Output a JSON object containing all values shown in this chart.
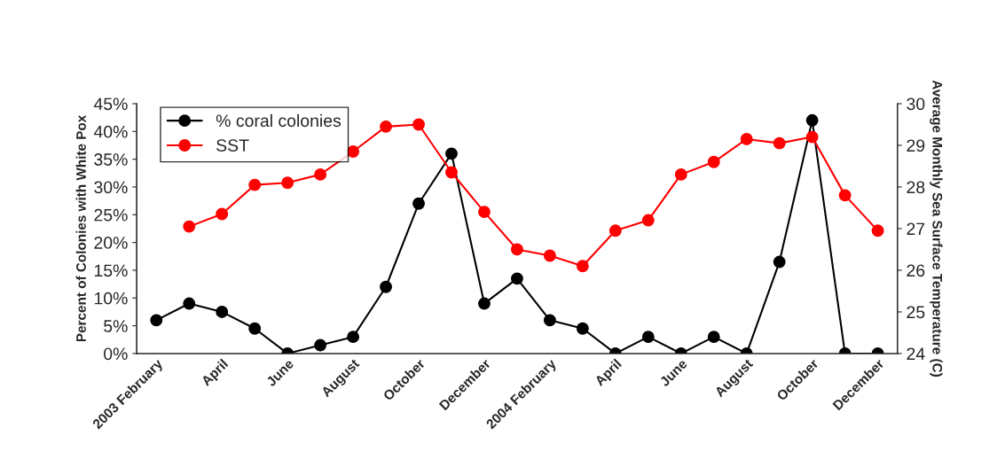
{
  "chart_data": {
    "type": "line",
    "categories": [
      "2003 February",
      null,
      "April",
      null,
      "June",
      null,
      "August",
      null,
      "October",
      null,
      "December",
      null,
      "2004 February",
      null,
      "April",
      null,
      "June",
      null,
      "August",
      null,
      "October",
      null,
      "December"
    ],
    "series": [
      {
        "name": "% coral colonies",
        "color": "#000000",
        "values": [
          6,
          9,
          7.5,
          4.5,
          0,
          1.5,
          3,
          12,
          27,
          36,
          9,
          13.5,
          6,
          4.5,
          0,
          3,
          0,
          3,
          0,
          16.5,
          42,
          0,
          0
        ]
      },
      {
        "name": "SST",
        "color": "#ff0000",
        "axis": "y2",
        "values": [
          null,
          27.05,
          27.35,
          28.05,
          28.1,
          28.3,
          28.85,
          29.45,
          29.5,
          28.35,
          27.4,
          26.5,
          26.35,
          26.1,
          26.95,
          27.2,
          28.3,
          28.6,
          29.15,
          29.05,
          29.2,
          27.8,
          26.95
        ]
      }
    ],
    "ylabel": "Percent of Colonies with White Pox",
    "y2label": "Average Monthly Sea Surface Temperature (C)",
    "ylim": [
      0,
      45
    ],
    "yticks": [
      {
        "value": 0,
        "label": "0%"
      },
      {
        "value": 5,
        "label": "5%"
      },
      {
        "value": 10,
        "label": "10%"
      },
      {
        "value": 15,
        "label": "15%"
      },
      {
        "value": 20,
        "label": "20%"
      },
      {
        "value": 25,
        "label": "25%"
      },
      {
        "value": 30,
        "label": "30%"
      },
      {
        "value": 35,
        "label": "35%"
      },
      {
        "value": 40,
        "label": "40%"
      },
      {
        "value": 45,
        "label": "45%"
      }
    ],
    "y2lim": [
      24,
      30
    ],
    "y2ticks": [
      24,
      25,
      26,
      27,
      28,
      29,
      30
    ],
    "marker": "circle",
    "line_style": "solid",
    "grid": false,
    "legend": "top left"
  }
}
